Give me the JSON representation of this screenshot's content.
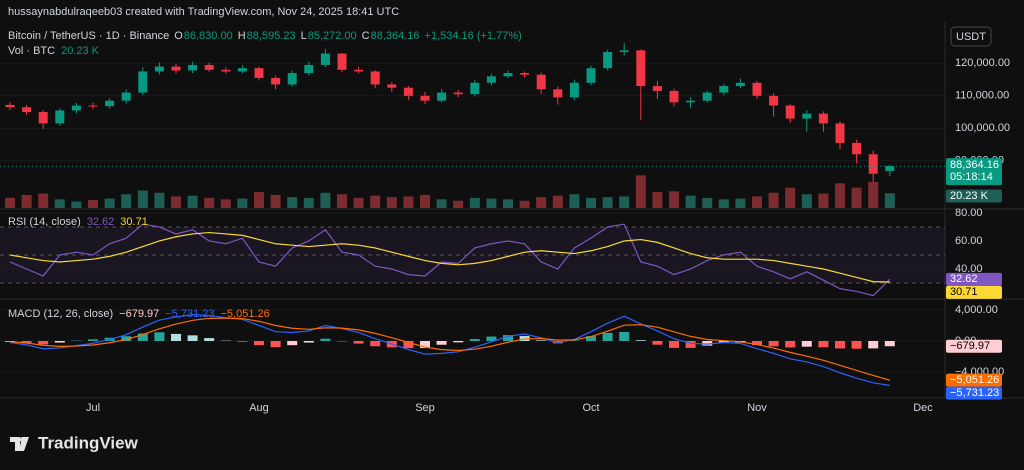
{
  "header": "hussaynabdulraqeeb03 created with TradingView.com, Nov 24, 2025 18:41 UTC",
  "currency": "USDT",
  "brand": "TradingView",
  "chart_data": [
    {
      "type": "candlestick",
      "title": "Bitcoin / TetherUS · 1D · Binance",
      "legend": [
        {
          "key": "O",
          "value": "86,830.00"
        },
        {
          "key": "H",
          "value": "88,595.23"
        },
        {
          "key": "L",
          "value": "85,272.00"
        },
        {
          "key": "C",
          "value": "88,364.16"
        }
      ],
      "change": "+1,534.16 (+1.77%)",
      "last_label": "88,364.16",
      "countdown": "05:18:14",
      "colors": {
        "up": "#089981",
        "down": "#f23645"
      },
      "categories": [
        null,
        null,
        null,
        null,
        null,
        "Jul",
        null,
        null,
        null,
        null,
        null,
        null,
        null,
        null,
        null,
        "Aug",
        null,
        null,
        null,
        null,
        null,
        null,
        null,
        null,
        null,
        "Sep",
        null,
        null,
        null,
        null,
        null,
        null,
        null,
        null,
        null,
        "Oct",
        null,
        null,
        null,
        null,
        null,
        null,
        null,
        null,
        null,
        "Nov",
        null,
        null,
        null,
        null,
        null,
        null,
        null,
        null,
        null,
        "Dec"
      ],
      "open": [
        107200,
        106500,
        105000,
        101500,
        105500,
        107000,
        106800,
        108500,
        111000,
        117500,
        119000,
        117800,
        119500,
        118000,
        117500,
        118500,
        115500,
        113500,
        117000,
        119500,
        123000,
        118000,
        117500,
        113500,
        112500,
        110000,
        108500,
        111000,
        110500,
        114000,
        116000,
        117000,
        116500,
        112000,
        109500,
        114000,
        118500,
        123500,
        124000,
        113000,
        111500,
        108000,
        108500,
        111000,
        113000,
        114000,
        110000,
        107000,
        103000,
        104500,
        101500,
        95500,
        92000,
        86830,
        null,
        null
      ],
      "high": [
        108000,
        107200,
        105600,
        106200,
        107800,
        107900,
        109200,
        112000,
        118800,
        120300,
        119800,
        120500,
        120200,
        118800,
        119400,
        119000,
        116200,
        117800,
        120500,
        124400,
        123200,
        119000,
        117900,
        114200,
        113000,
        111200,
        112000,
        111800,
        114800,
        116800,
        117800,
        117500,
        117100,
        112800,
        115000,
        119200,
        124200,
        126200,
        124300,
        114600,
        112200,
        109600,
        111600,
        113700,
        115300,
        114600,
        110800,
        107400,
        105600,
        105200,
        102200,
        96500,
        93200,
        88595.23,
        null,
        null
      ],
      "low": [
        105600,
        104100,
        99800,
        100800,
        104600,
        105900,
        106000,
        107600,
        110200,
        116600,
        116900,
        117000,
        117400,
        116800,
        116900,
        114700,
        112000,
        112800,
        116300,
        118800,
        117200,
        116900,
        112300,
        111200,
        108800,
        107500,
        108000,
        109600,
        109800,
        113200,
        115500,
        115600,
        110500,
        107300,
        108600,
        113200,
        117800,
        122400,
        102500,
        109000,
        106800,
        106200,
        107800,
        110200,
        112400,
        109000,
        103600,
        101700,
        98900,
        98900,
        93500,
        89200,
        80600,
        85272,
        null,
        null
      ],
      "close": [
        106500,
        105000,
        101500,
        105500,
        107000,
        106800,
        108500,
        111000,
        117500,
        119000,
        117800,
        119500,
        118000,
        117500,
        118500,
        115500,
        113500,
        117000,
        119500,
        123000,
        118000,
        117500,
        113500,
        112500,
        110000,
        108500,
        111000,
        110500,
        114000,
        116000,
        117000,
        116500,
        112000,
        109500,
        114000,
        118500,
        123500,
        124000,
        113000,
        111500,
        108000,
        108500,
        111000,
        113000,
        114000,
        110000,
        107000,
        103000,
        104500,
        101500,
        95500,
        92000,
        86000,
        88364.16,
        null,
        null
      ],
      "ylim": [
        75450,
        132730
      ],
      "yticks": [
        {
          "value": 90000,
          "label": "90,000.00"
        },
        {
          "value": 100000,
          "label": "100,000.00"
        },
        {
          "value": 110000,
          "label": "110,000.00"
        },
        {
          "value": 120000,
          "label": "120,000.00"
        }
      ],
      "grid": true
    },
    {
      "type": "volume",
      "title": "Vol · BTC",
      "last_label": "20.23 K",
      "colors": {
        "up": "#1d5e55",
        "down": "#7d2b2f"
      },
      "values": [
        14000,
        18000,
        20000,
        12000,
        9000,
        11000,
        13000,
        19000,
        24000,
        21000,
        16000,
        17000,
        14000,
        12000,
        13000,
        22000,
        18000,
        15000,
        14000,
        21000,
        19000,
        14000,
        17000,
        15000,
        16000,
        18000,
        12000,
        10000,
        14000,
        13000,
        12000,
        10000,
        15000,
        17000,
        19000,
        14000,
        15000,
        16000,
        45000,
        22000,
        23000,
        17000,
        14000,
        12000,
        13000,
        16000,
        21000,
        28000,
        19000,
        20000,
        34000,
        28000,
        36000,
        20230,
        null,
        null
      ],
      "ylim": [
        0,
        80000
      ]
    },
    {
      "type": "line",
      "title": "RSI (14, close)",
      "bands": [
        30,
        70
      ],
      "midline": 50,
      "series": [
        {
          "color": "#7e57c2",
          "last_label": "32.62",
          "values": [
            45,
            40,
            35,
            50,
            52,
            50,
            58,
            62,
            72,
            70,
            65,
            68,
            60,
            58,
            62,
            45,
            42,
            55,
            60,
            68,
            52,
            50,
            42,
            40,
            36,
            35,
            45,
            44,
            55,
            58,
            60,
            58,
            45,
            40,
            55,
            62,
            70,
            72,
            45,
            42,
            36,
            40,
            46,
            50,
            52,
            42,
            38,
            33,
            38,
            32,
            26,
            24,
            21,
            32.62,
            null,
            null
          ]
        },
        {
          "color": "#fdd835",
          "last_label": "30.71",
          "values": [
            50,
            48,
            46,
            45,
            46,
            47,
            49,
            52,
            56,
            60,
            63,
            65,
            66,
            65,
            64,
            61,
            58,
            57,
            56,
            57,
            58,
            57,
            55,
            52,
            49,
            46,
            44,
            43,
            44,
            46,
            49,
            52,
            53,
            52,
            51,
            53,
            56,
            60,
            61,
            59,
            55,
            51,
            48,
            47,
            47,
            47,
            46,
            44,
            42,
            40,
            37,
            34,
            31,
            30.71,
            null,
            null
          ]
        }
      ],
      "ylim": [
        19.3,
        82.1
      ],
      "yticks": [
        {
          "value": 40,
          "label": "40.00"
        },
        {
          "value": 60,
          "label": "60.00"
        },
        {
          "value": 80,
          "label": "80.00"
        }
      ]
    },
    {
      "type": "macd",
      "title": "MACD (12, 26, close)",
      "series": [
        {
          "kind": "histogram",
          "last_label": "−679.97",
          "values": [
            -100,
            -240,
            -444,
            -206,
            56,
            214,
            428,
            617,
            970,
            1122,
            913,
            728,
            377,
            46,
            -92,
            -535,
            -801,
            -541,
            -205,
            297,
            -62,
            -337,
            -682,
            -829,
            -917,
            -910,
            -486,
            -172,
            257,
            574,
            764,
            638,
            83,
            -310,
            54,
            632,
            1039,
            1163,
            98,
            -481,
            -889,
            -893,
            -596,
            -238,
            -203,
            -542,
            -685,
            -831,
            -739,
            -803,
            -962,
            -997,
            -958,
            -679.97,
            null,
            null
          ]
        },
        {
          "kind": "line",
          "color": "#2962ff",
          "last_label": "−5,731.23",
          "values": [
            -200,
            -500,
            -1000,
            -900,
            -600,
            -300,
            200,
            800,
            1800,
            2700,
            3100,
            3400,
            3300,
            3000,
            2800,
            2000,
            1200,
            1100,
            1300,
            2000,
            1600,
            1100,
            300,
            -400,
            -1100,
            -1700,
            -1600,
            -1400,
            -800,
            -100,
            600,
            900,
            400,
            -200,
            200,
            1200,
            2300,
            3200,
            2200,
            1300,
            300,
            -300,
            -400,
            -200,
            -300,
            -1000,
            -1600,
            -2300,
            -2700,
            -3300,
            -4100,
            -4800,
            -5400,
            -5731.23,
            null,
            null
          ]
        },
        {
          "kind": "line",
          "color": "#ff6d00",
          "last_label": "−5,051.26",
          "values": [
            -100,
            -260,
            -556,
            -694,
            -656,
            -514,
            -228,
            183,
            830,
            1578,
            2187,
            2672,
            2923,
            2954,
            2892,
            2535,
            2001,
            1641,
            1505,
            1703,
            1662,
            1437,
            982,
            429,
            -183,
            -790,
            -1114,
            -1228,
            -1057,
            -674,
            -164,
            262,
            317,
            110,
            146,
            568,
            1261,
            2037,
            2102,
            1781,
            1189,
            593,
            196,
            38,
            -97,
            -458,
            -915,
            -1469,
            -1961,
            -2497,
            -3138,
            -3803,
            -4442,
            -5051.26,
            null,
            null
          ]
        }
      ],
      "ylim": [
        -7100,
        5290
      ],
      "yticks": [
        {
          "value": -4000,
          "label": "−4,000.00"
        },
        {
          "value": 0,
          "label": "0.00"
        },
        {
          "value": 4000,
          "label": "4,000.00"
        }
      ]
    }
  ]
}
